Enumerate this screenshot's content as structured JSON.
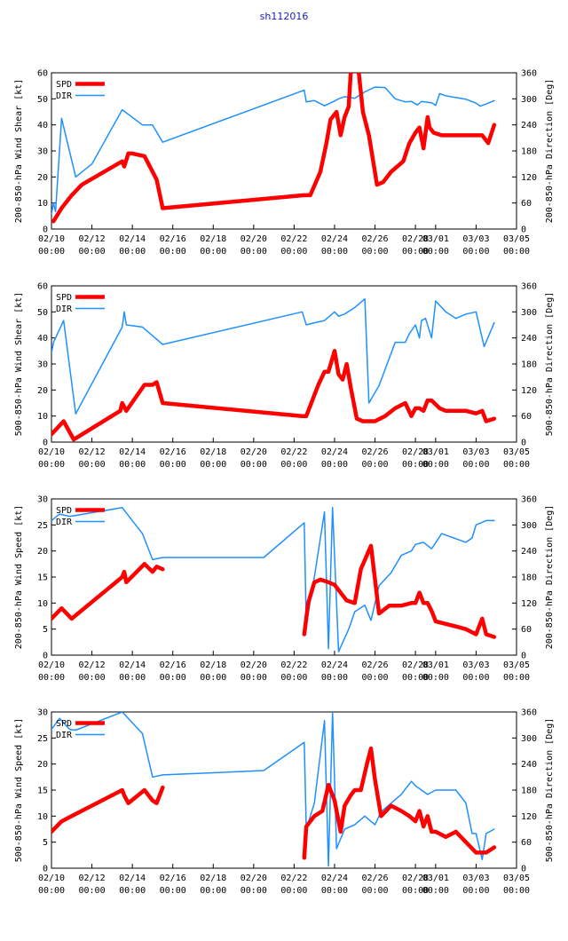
{
  "title": "sh112016",
  "colors": {
    "spd": "#ff0000",
    "dir": "#1e90ff",
    "axis": "#000000",
    "title": "#1a1acd"
  },
  "x_ticks": [
    [
      "02/10",
      "00:00"
    ],
    [
      "02/12",
      "00:00"
    ],
    [
      "02/14",
      "00:00"
    ],
    [
      "02/16",
      "00:00"
    ],
    [
      "02/18",
      "00:00"
    ],
    [
      "02/20",
      "00:00"
    ],
    [
      "02/22",
      "00:00"
    ],
    [
      "02/24",
      "00:00"
    ],
    [
      "02/26",
      "00:00"
    ],
    [
      "02/28",
      "00:00"
    ],
    [
      "03/01",
      "00:00"
    ],
    [
      "03/03",
      "00:00"
    ],
    [
      "03/05",
      "00:00"
    ]
  ],
  "x_tick_days": [
    0,
    2,
    4,
    6,
    8,
    10,
    12,
    14,
    16,
    18,
    19,
    21,
    23
  ],
  "chart_data": [
    {
      "type": "line",
      "ylabel": "200-850-hPa Wind Shear [kt]",
      "y2label": "200-850-hPa Direction [Deg]",
      "ylim": [
        0,
        60
      ],
      "y_ticks": [
        "0",
        "10",
        "20",
        "30",
        "40",
        "50",
        "60"
      ],
      "y2lim": [
        0,
        360
      ],
      "y2_ticks": [
        "0",
        "60",
        "120",
        "180",
        "240",
        "300",
        "360"
      ],
      "xlim_days": [
        0,
        23
      ],
      "legend": [
        "SPD",
        "DIR"
      ],
      "series": [
        {
          "name": "SPD",
          "axis": "left",
          "x": [
            0.1,
            0.5,
            1.0,
            1.5,
            3.5,
            3.6,
            3.8,
            4.0,
            4.6,
            5.2,
            5.5,
            12.5,
            12.8,
            13.3,
            13.6,
            13.8,
            14.1,
            14.3,
            14.5,
            14.7,
            14.8,
            15.0,
            15.2,
            15.4,
            15.7,
            16.1,
            16.4,
            16.8,
            17.4,
            17.7,
            18.0,
            18.2,
            18.4,
            18.6,
            18.7,
            18.9,
            19.3,
            19.6,
            20.1,
            20.6,
            21.3,
            21.6,
            21.9
          ],
          "y": [
            3,
            8,
            13,
            17,
            26,
            24,
            29,
            29,
            28,
            19,
            8,
            13,
            13,
            22,
            33,
            42,
            45,
            36,
            43,
            47,
            60,
            61,
            60,
            45,
            36,
            17,
            18,
            22,
            26,
            33,
            37,
            39,
            31,
            43,
            39,
            37,
            36,
            36,
            36,
            36,
            36,
            33,
            40
          ]
        },
        {
          "name": "DIR",
          "axis": "right",
          "x": [
            0.0,
            0.1,
            0.2,
            0.5,
            1.2,
            2.0,
            3.5,
            4.5,
            5.0,
            5.5,
            12.5,
            12.6,
            13.0,
            13.5,
            14.0,
            14.2,
            14.5,
            15.0,
            15.5,
            16.0,
            16.5,
            17.0,
            17.5,
            17.8,
            18.1,
            18.3,
            18.6,
            18.8,
            19.0,
            19.2,
            19.5,
            20.0,
            20.5,
            21.0,
            21.2,
            21.5,
            21.9
          ],
          "y": [
            35,
            60,
            40,
            255,
            120,
            150,
            275,
            240,
            240,
            200,
            320,
            293,
            296,
            284,
            295,
            300,
            305,
            301,
            316,
            327,
            326,
            300,
            293,
            294,
            286,
            294,
            292,
            291,
            285,
            312,
            307,
            303,
            299,
            290,
            283,
            288,
            296
          ]
        }
      ]
    },
    {
      "type": "line",
      "ylabel": "500-850-hPa Wind Shear [kt]",
      "y2label": "500-850-hPa Direction [Deg]",
      "ylim": [
        0,
        60
      ],
      "y_ticks": [
        "0",
        "10",
        "20",
        "30",
        "40",
        "50",
        "60"
      ],
      "y2lim": [
        0,
        360
      ],
      "y2_ticks": [
        "0",
        "60",
        "120",
        "180",
        "240",
        "300",
        "360"
      ],
      "xlim_days": [
        0,
        23
      ],
      "legend": [
        "SPD",
        "DIR"
      ],
      "series": [
        {
          "name": "SPD",
          "axis": "left",
          "x": [
            0.0,
            0.6,
            1.1,
            3.4,
            3.5,
            3.7,
            4.6,
            5.0,
            5.2,
            5.5,
            12.4,
            12.6,
            13.2,
            13.5,
            13.7,
            14.0,
            14.2,
            14.4,
            14.6,
            14.8,
            15.1,
            15.4,
            15.7,
            16.0,
            16.5,
            17.0,
            17.5,
            17.8,
            18.0,
            18.2,
            18.4,
            18.6,
            18.8,
            19.2,
            19.5,
            20.0,
            20.5,
            21.0,
            21.3,
            21.5,
            21.9
          ],
          "y": [
            3,
            8,
            1,
            12,
            15,
            12,
            22,
            22,
            23,
            15,
            10,
            10,
            22,
            27,
            27,
            35,
            26,
            24,
            30,
            21,
            9,
            8,
            8,
            8,
            10,
            13,
            15,
            10,
            13,
            13,
            12,
            16,
            16,
            13,
            12,
            12,
            12,
            11,
            12,
            8,
            9
          ]
        },
        {
          "name": "DIR",
          "axis": "right",
          "x": [
            0.0,
            0.1,
            0.6,
            1.2,
            3.5,
            3.6,
            3.7,
            4.5,
            5.0,
            5.5,
            12.4,
            12.6,
            13.0,
            13.5,
            14.0,
            14.2,
            14.5,
            15.0,
            15.5,
            15.7,
            16.2,
            17.0,
            17.5,
            17.7,
            18.0,
            18.2,
            18.3,
            18.5,
            18.8,
            19.0,
            19.5,
            20.0,
            20.5,
            21.0,
            21.4,
            21.9
          ],
          "y": [
            205,
            230,
            280,
            65,
            265,
            300,
            270,
            265,
            245,
            225,
            300,
            270,
            275,
            280,
            300,
            290,
            295,
            310,
            330,
            90,
            130,
            230,
            230,
            250,
            270,
            240,
            280,
            285,
            240,
            325,
            300,
            285,
            295,
            300,
            220,
            275
          ]
        }
      ]
    },
    {
      "type": "line",
      "ylabel": "200-850-hPa Wind Speed [kt]",
      "y2label": "200-850-hPa Direction [Deg]",
      "ylim": [
        0,
        30
      ],
      "y_ticks": [
        "0",
        "5",
        "10",
        "15",
        "20",
        "25",
        "30"
      ],
      "y2lim": [
        0,
        360
      ],
      "y2_ticks": [
        "0",
        "60",
        "120",
        "180",
        "240",
        "300",
        "360"
      ],
      "xlim_days": [
        0,
        23
      ],
      "legend": [
        "SPD",
        "DIR"
      ],
      "series": [
        {
          "name": "SPD",
          "axis": "left",
          "x": [
            0.0,
            0.5,
            1.0,
            3.5,
            3.6,
            3.7,
            4.6,
            5.0,
            5.2,
            5.5
          ],
          "y": [
            7,
            9,
            7,
            15,
            16,
            14,
            17.5,
            16,
            17,
            16.5
          ]
        },
        {
          "name": "SPD",
          "axis": "left",
          "x": [
            12.5,
            12.7,
            13.0,
            13.3,
            13.7,
            14.0,
            14.3,
            14.6,
            15.0,
            15.3,
            15.8,
            16.2,
            16.7,
            17.3,
            17.8,
            18.0,
            18.2,
            18.4,
            18.6,
            18.8,
            19.0,
            19.5,
            20.0,
            20.5,
            21.0,
            21.3,
            21.5,
            21.9
          ],
          "y": [
            4,
            10,
            14,
            14.5,
            14,
            13.5,
            12,
            10.5,
            10,
            16.5,
            21,
            8,
            9.5,
            9.5,
            10,
            10,
            12,
            10,
            10,
            8.5,
            6.5,
            6,
            5.5,
            5,
            4,
            7,
            4,
            3.5
          ]
        },
        {
          "name": "DIR",
          "axis": "right",
          "x": [
            0.0,
            0.4,
            0.9,
            1.2,
            3.5,
            4.5,
            5.0,
            5.5,
            10.5,
            12.5,
            12.6,
            13.0,
            13.5,
            13.7,
            13.9,
            14.2,
            14.7,
            15.0,
            15.5,
            15.8,
            16.2,
            16.8,
            17.3,
            17.8,
            18.0,
            18.4,
            18.8,
            19.3,
            20.5,
            20.8,
            21.0,
            21.5,
            21.9
          ],
          "y": [
            310,
            325,
            320,
            322,
            340,
            280,
            220,
            225,
            225,
            305,
            70,
            180,
            330,
            15,
            340,
            8,
            60,
            100,
            115,
            80,
            160,
            190,
            230,
            240,
            255,
            260,
            245,
            280,
            260,
            270,
            300,
            310,
            310
          ]
        }
      ]
    },
    {
      "type": "line",
      "ylabel": "500-850-hPa Wind Speed [kt]",
      "y2label": "500-850-hPa Direction [Deg]",
      "ylim": [
        0,
        30
      ],
      "y_ticks": [
        "0",
        "5",
        "10",
        "15",
        "20",
        "25",
        "30"
      ],
      "y2lim": [
        0,
        360
      ],
      "y2_ticks": [
        "0",
        "60",
        "120",
        "180",
        "240",
        "300",
        "360"
      ],
      "xlim_days": [
        0,
        23
      ],
      "legend": [
        "SPD",
        "DIR"
      ],
      "series": [
        {
          "name": "SPD",
          "axis": "left",
          "x": [
            0.0,
            0.5,
            1.0,
            3.5,
            3.6,
            3.8,
            4.6,
            5.0,
            5.2,
            5.5
          ],
          "y": [
            7,
            9,
            10,
            15,
            14,
            12.5,
            15,
            13,
            12.5,
            15.5
          ]
        },
        {
          "name": "SPD",
          "axis": "left",
          "x": [
            12.5,
            12.6,
            13.0,
            13.4,
            13.7,
            14.0,
            14.3,
            14.5,
            14.8,
            15.0,
            15.3,
            15.6,
            15.8,
            16.0,
            16.3,
            16.8,
            17.3,
            17.7,
            18.0,
            18.2,
            18.4,
            18.6,
            18.8,
            19.0,
            19.5,
            20.0,
            20.5,
            21.0,
            21.3,
            21.5,
            21.9
          ],
          "y": [
            2,
            8,
            10,
            11,
            16,
            13,
            7,
            12,
            14,
            15,
            15,
            20,
            23,
            17,
            10,
            12,
            11,
            10,
            9,
            11,
            8,
            10,
            7,
            7,
            6,
            7,
            5,
            3,
            3,
            3,
            4
          ]
        },
        {
          "name": "DIR",
          "axis": "right",
          "x": [
            0.0,
            0.4,
            0.9,
            1.2,
            3.5,
            4.5,
            5.0,
            5.5,
            10.5,
            12.5,
            12.6,
            13.0,
            13.5,
            13.7,
            13.9,
            14.1,
            14.5,
            15.0,
            15.5,
            16.0,
            16.3,
            16.8,
            17.3,
            17.8,
            18.0,
            18.3,
            18.6,
            19.0,
            20.0,
            20.5,
            20.8,
            21.0,
            21.3,
            21.5,
            21.9
          ],
          "y": [
            320,
            345,
            320,
            318,
            360,
            310,
            210,
            215,
            225,
            290,
            90,
            150,
            340,
            5,
            360,
            45,
            90,
            100,
            120,
            100,
            130,
            150,
            170,
            200,
            190,
            180,
            170,
            180,
            180,
            150,
            80,
            80,
            20,
            80,
            90
          ]
        }
      ]
    }
  ]
}
